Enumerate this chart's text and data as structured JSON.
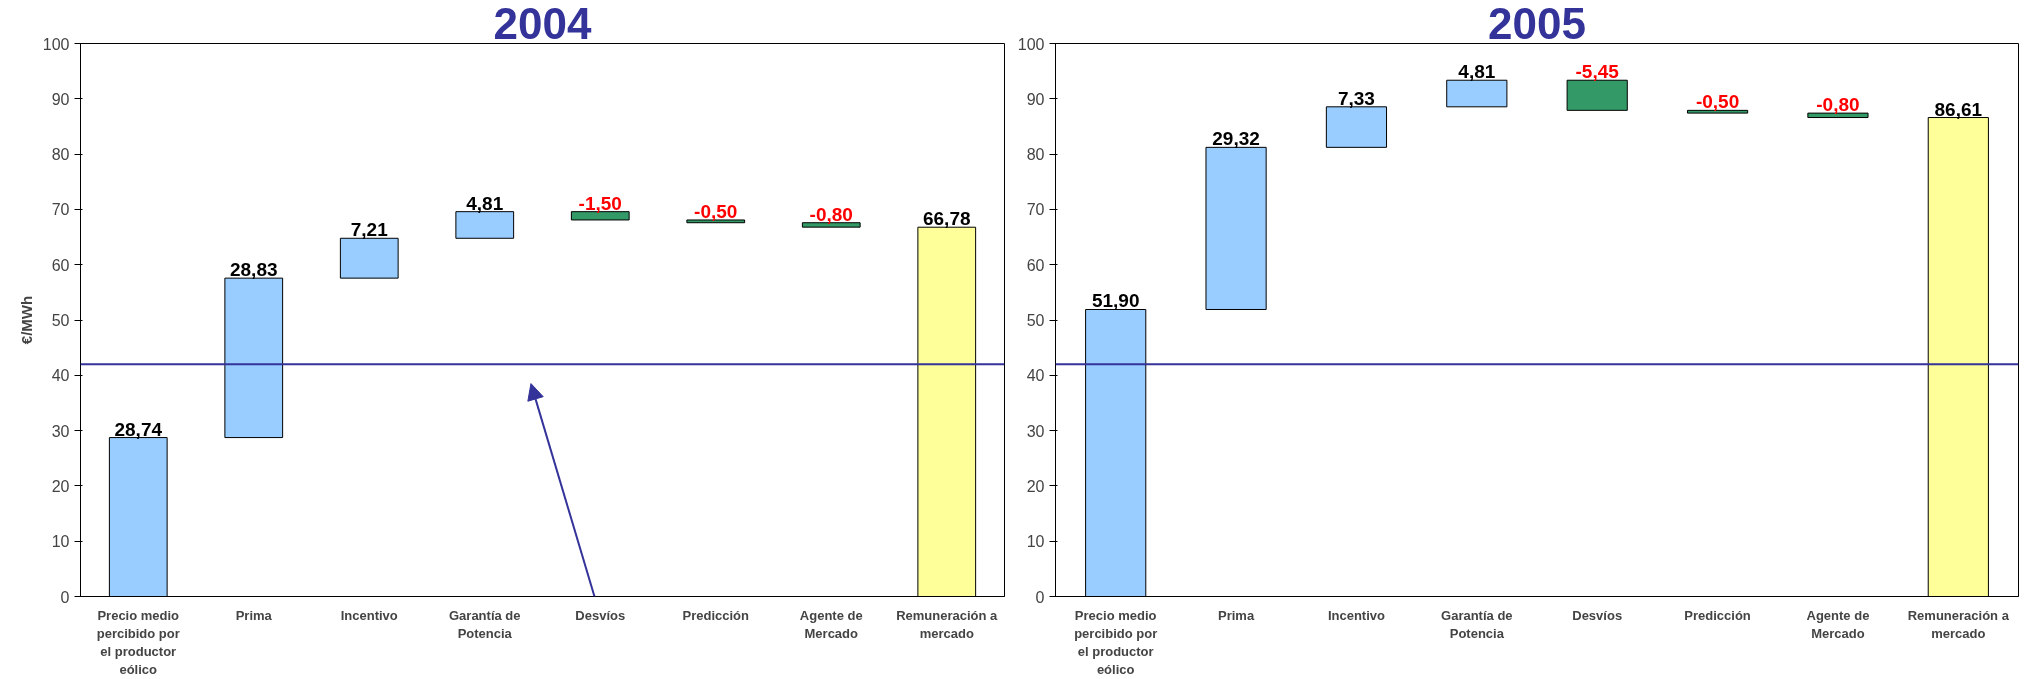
{
  "chart_data": [
    {
      "type": "bar",
      "title": "2004",
      "ylabel": "€/MWh",
      "categories": [
        "Precio medio percibido por el productor eólico",
        "Prima",
        "Incentivo",
        "Garantía de Potencia",
        "Desvíos",
        "Predicción",
        "Agente de Mercado",
        "Remuneración a mercado"
      ],
      "values": [
        28.74,
        28.83,
        7.21,
        4.81,
        -1.5,
        -0.5,
        -0.8,
        66.78
      ],
      "base": [
        0,
        28.74,
        57.57,
        64.78,
        69.59,
        68.09,
        67.59,
        0
      ],
      "colors": [
        "#99ccff",
        "#99ccff",
        "#99ccff",
        "#99ccff",
        "#339966",
        "#339966",
        "#339966",
        "#ffff99"
      ],
      "value_labels": [
        "28,74",
        "28,83",
        "7,21",
        "4,81",
        "-1,50",
        "-0,50",
        "-0,80",
        "66,78"
      ],
      "ylim": [
        0,
        100
      ],
      "yticks": [
        0,
        10,
        20,
        30,
        40,
        50,
        60,
        70,
        80,
        90,
        100
      ],
      "ref_lines": [
        {
          "axis": "y",
          "value": 42,
          "label": null,
          "color": "#333399"
        }
      ]
    },
    {
      "type": "bar",
      "title": "2005",
      "categories": [
        "Precio medio percibido por el productor eólico",
        "Prima",
        "Incentivo",
        "Garantía de Potencia",
        "Desvíos",
        "Predicción",
        "Agente de Mercado",
        "Remuneración a mercado"
      ],
      "values": [
        51.9,
        29.32,
        7.33,
        4.81,
        -5.45,
        -0.5,
        -0.8,
        86.61
      ],
      "base": [
        0,
        51.9,
        81.22,
        88.55,
        93.36,
        87.91,
        87.41,
        0
      ],
      "colors": [
        "#99ccff",
        "#99ccff",
        "#99ccff",
        "#99ccff",
        "#339966",
        "#339966",
        "#339966",
        "#ffff99"
      ],
      "value_labels": [
        "51,90",
        "29,32",
        "7,33",
        "4,81",
        "-5,45",
        "-0,50",
        "-0,80",
        "86,61"
      ],
      "ylim": [
        0,
        100
      ],
      "yticks": [
        0,
        10,
        20,
        30,
        40,
        50,
        60,
        70,
        80,
        90,
        100
      ],
      "ref_lines": [
        {
          "axis": "y",
          "value": 42,
          "label": null,
          "color": "#333399"
        }
      ]
    }
  ]
}
